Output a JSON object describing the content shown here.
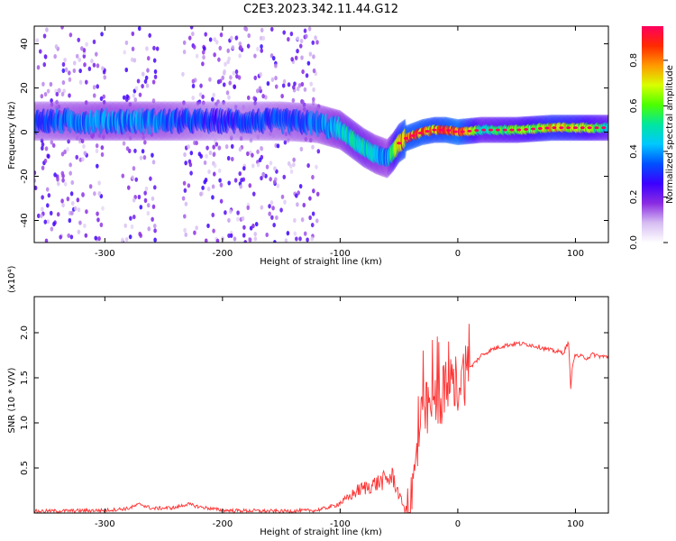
{
  "title": "C2E3.2023.342.11.44.G12",
  "chart_data": [
    {
      "type": "heatmap",
      "xlabel": "Height of straight line (km)",
      "ylabel": "Frequency (Hz)",
      "xlim": [
        -360,
        128
      ],
      "ylim": [
        -50,
        48
      ],
      "xticks": [
        -300,
        -200,
        -100,
        0,
        100
      ],
      "yticks": [
        -40,
        -20,
        0,
        20,
        40
      ],
      "colorbar": {
        "label": "Normalized spectral amplitude",
        "range": [
          0.0,
          0.95
        ],
        "ticks": [
          "0.0",
          "0.2",
          "0.4",
          "0.6",
          "0.8"
        ],
        "colors": [
          "#ffffff",
          "#d6bdf2",
          "#8a2be2",
          "#3b00ff",
          "#0050ff",
          "#00c8ff",
          "#00e6a0",
          "#4cff00",
          "#d8ff00",
          "#ff9900",
          "#ff2a00",
          "#ff0060"
        ]
      },
      "main_track": {
        "x": [
          -360,
          -300,
          -250,
          -200,
          -150,
          -120,
          -100,
          -90,
          -80,
          -70,
          -60,
          -55,
          -50,
          -45,
          -40,
          -30,
          -20,
          -10,
          0,
          20,
          50,
          80,
          100,
          128
        ],
        "y": [
          5,
          5,
          5,
          5,
          5,
          4,
          1,
          -3,
          -7,
          -10,
          -12,
          -9,
          -5,
          -3,
          -2,
          0,
          1,
          1,
          0,
          1,
          1,
          2,
          2,
          2
        ],
        "amplitude": [
          0.35,
          0.4,
          0.38,
          0.3,
          0.35,
          0.38,
          0.45,
          0.5,
          0.5,
          0.45,
          0.4,
          0.6,
          0.75,
          0.85,
          0.85,
          0.85,
          0.8,
          0.85,
          0.9,
          0.55,
          0.6,
          0.75,
          0.7,
          0.55
        ]
      },
      "scatter_noise_regions": [
        [
          -360,
          -115
        ]
      ]
    },
    {
      "type": "line",
      "xlabel": "Height of straight line (km)",
      "ylabel": "SNR (10 * V/V)",
      "y_multiplier": "(x10⁴)",
      "xlim": [
        -360,
        128
      ],
      "ylim": [
        0,
        2.4
      ],
      "xticks": [
        -300,
        -200,
        -100,
        0,
        100
      ],
      "yticks": [
        "0.5",
        "1.0",
        "1.5",
        "2.0"
      ],
      "series": [
        {
          "color": "#ff3333",
          "x": [
            -360,
            -300,
            -280,
            -270,
            -260,
            -240,
            -230,
            -220,
            -200,
            -150,
            -120,
            -105,
            -95,
            -85,
            -75,
            -65,
            -55,
            -50,
            -45,
            -40,
            -35,
            -32,
            -28,
            -22,
            -15,
            -10,
            -5,
            0,
            10,
            20,
            30,
            40,
            50,
            60,
            70,
            80,
            90,
            94,
            96,
            98,
            100,
            110,
            115,
            120,
            128
          ],
          "y": [
            0.02,
            0.03,
            0.05,
            0.1,
            0.05,
            0.06,
            0.1,
            0.07,
            0.03,
            0.02,
            0.03,
            0.08,
            0.15,
            0.25,
            0.3,
            0.35,
            0.4,
            0.2,
            0.05,
            0.1,
            0.6,
            1.0,
            1.1,
            1.2,
            1.3,
            1.35,
            1.4,
            1.45,
            1.6,
            1.75,
            1.82,
            1.86,
            1.88,
            1.87,
            1.84,
            1.8,
            1.78,
            1.9,
            1.4,
            1.7,
            1.75,
            1.72,
            1.76,
            1.74,
            1.73
          ]
        }
      ]
    }
  ]
}
